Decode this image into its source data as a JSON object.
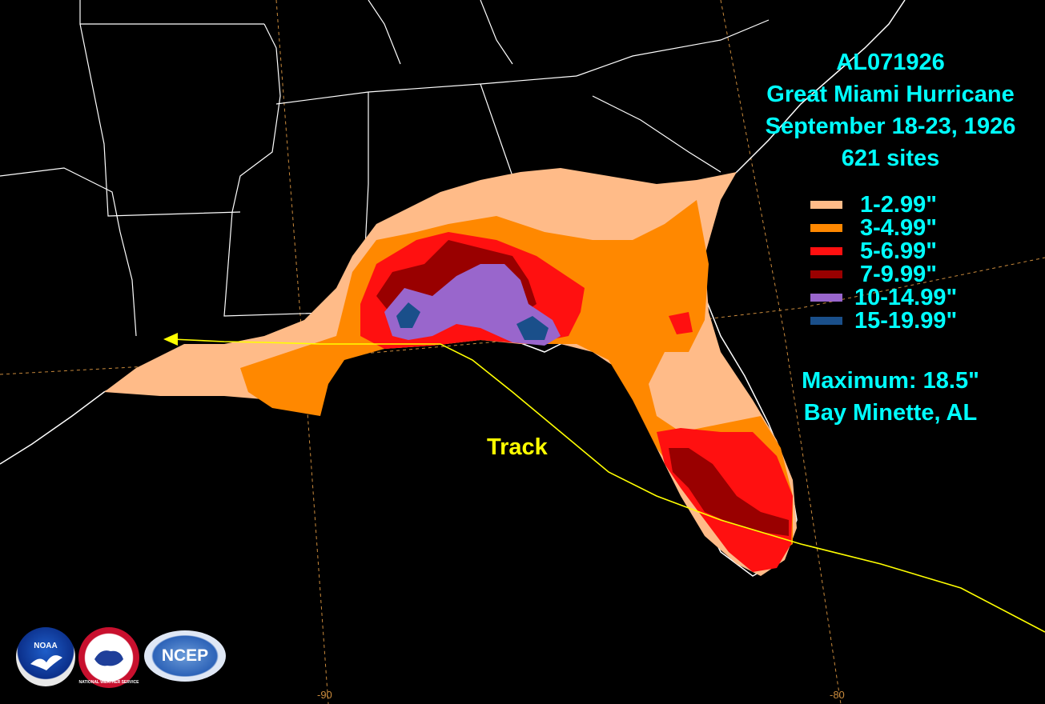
{
  "title": {
    "storm_id": "AL071926",
    "storm_name": "Great Miami Hurricane",
    "dates": "September 18-23, 1926",
    "sites": "621 sites"
  },
  "legend": [
    {
      "label": "1-2.99\"",
      "color": "#FFBB88"
    },
    {
      "label": "3-4.99\"",
      "color": "#FF8800"
    },
    {
      "label": "5-6.99\"",
      "color": "#FF1010"
    },
    {
      "label": "7-9.99\"",
      "color": "#990000"
    },
    {
      "label": "10-14.99\"",
      "color": "#9966CC"
    },
    {
      "label": "15-19.99\"",
      "color": "#1A4F8A"
    }
  ],
  "maximum": {
    "value_line": "Maximum: 18.5\"",
    "location": "Bay Minette, AL"
  },
  "track_label": "Track",
  "longitude_labels": [
    "-90",
    "-80"
  ],
  "logos": [
    {
      "name": "noaa-logo",
      "text": "NOAA"
    },
    {
      "name": "nws-logo",
      "text": "NATIONAL WEATHER SERVICE"
    },
    {
      "name": "ncep-logo",
      "text": "NCEP"
    }
  ],
  "colors": {
    "background": "#000000",
    "text": "#00FFFF",
    "track": "#FFFF00",
    "boundaries": "#FFFFFF",
    "graticule": "#C98A3C"
  }
}
